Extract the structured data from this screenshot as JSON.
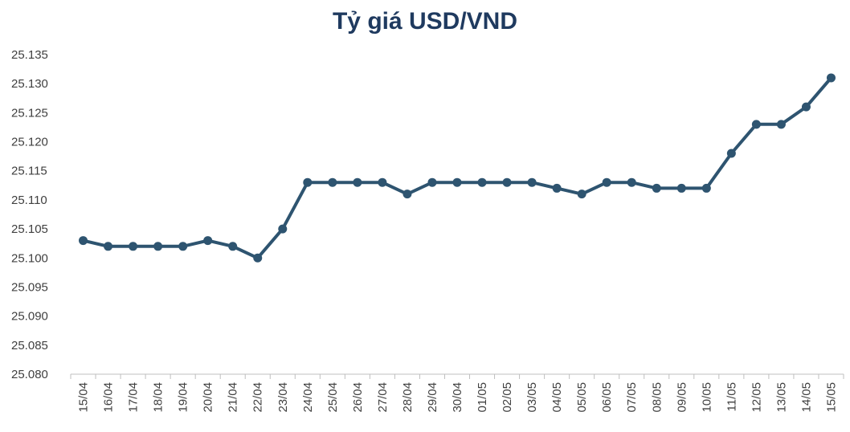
{
  "chart_data": {
    "type": "line",
    "title": "Tỷ giá USD/VND",
    "xlabel": "",
    "ylabel": "",
    "categories": [
      "15/04",
      "16/04",
      "17/04",
      "18/04",
      "19/04",
      "20/04",
      "21/04",
      "22/04",
      "23/04",
      "24/04",
      "25/04",
      "26/04",
      "27/04",
      "28/04",
      "29/04",
      "30/04",
      "01/05",
      "02/05",
      "03/05",
      "04/05",
      "05/05",
      "06/05",
      "07/05",
      "08/05",
      "09/05",
      "10/05",
      "11/05",
      "12/05",
      "13/05",
      "14/05",
      "15/05"
    ],
    "series": [
      {
        "values": [
          25103,
          25102,
          25102,
          25102,
          25102,
          25103,
          25102,
          25100,
          25105,
          25113,
          25113,
          25113,
          25113,
          25111,
          25113,
          25113,
          25113,
          25113,
          25113,
          25112,
          25111,
          25113,
          25113,
          25112,
          25112,
          25112,
          25118,
          25123,
          25123,
          25126,
          25131
        ],
        "color": "#2e5470"
      }
    ],
    "ylim": [
      25080,
      25135
    ],
    "yticks": [
      "25.080",
      "25.085",
      "25.090",
      "25.095",
      "25.100",
      "25.105",
      "25.110",
      "25.115",
      "25.120",
      "25.125",
      "25.130",
      "25.135"
    ],
    "grid": false,
    "legend": "none"
  }
}
